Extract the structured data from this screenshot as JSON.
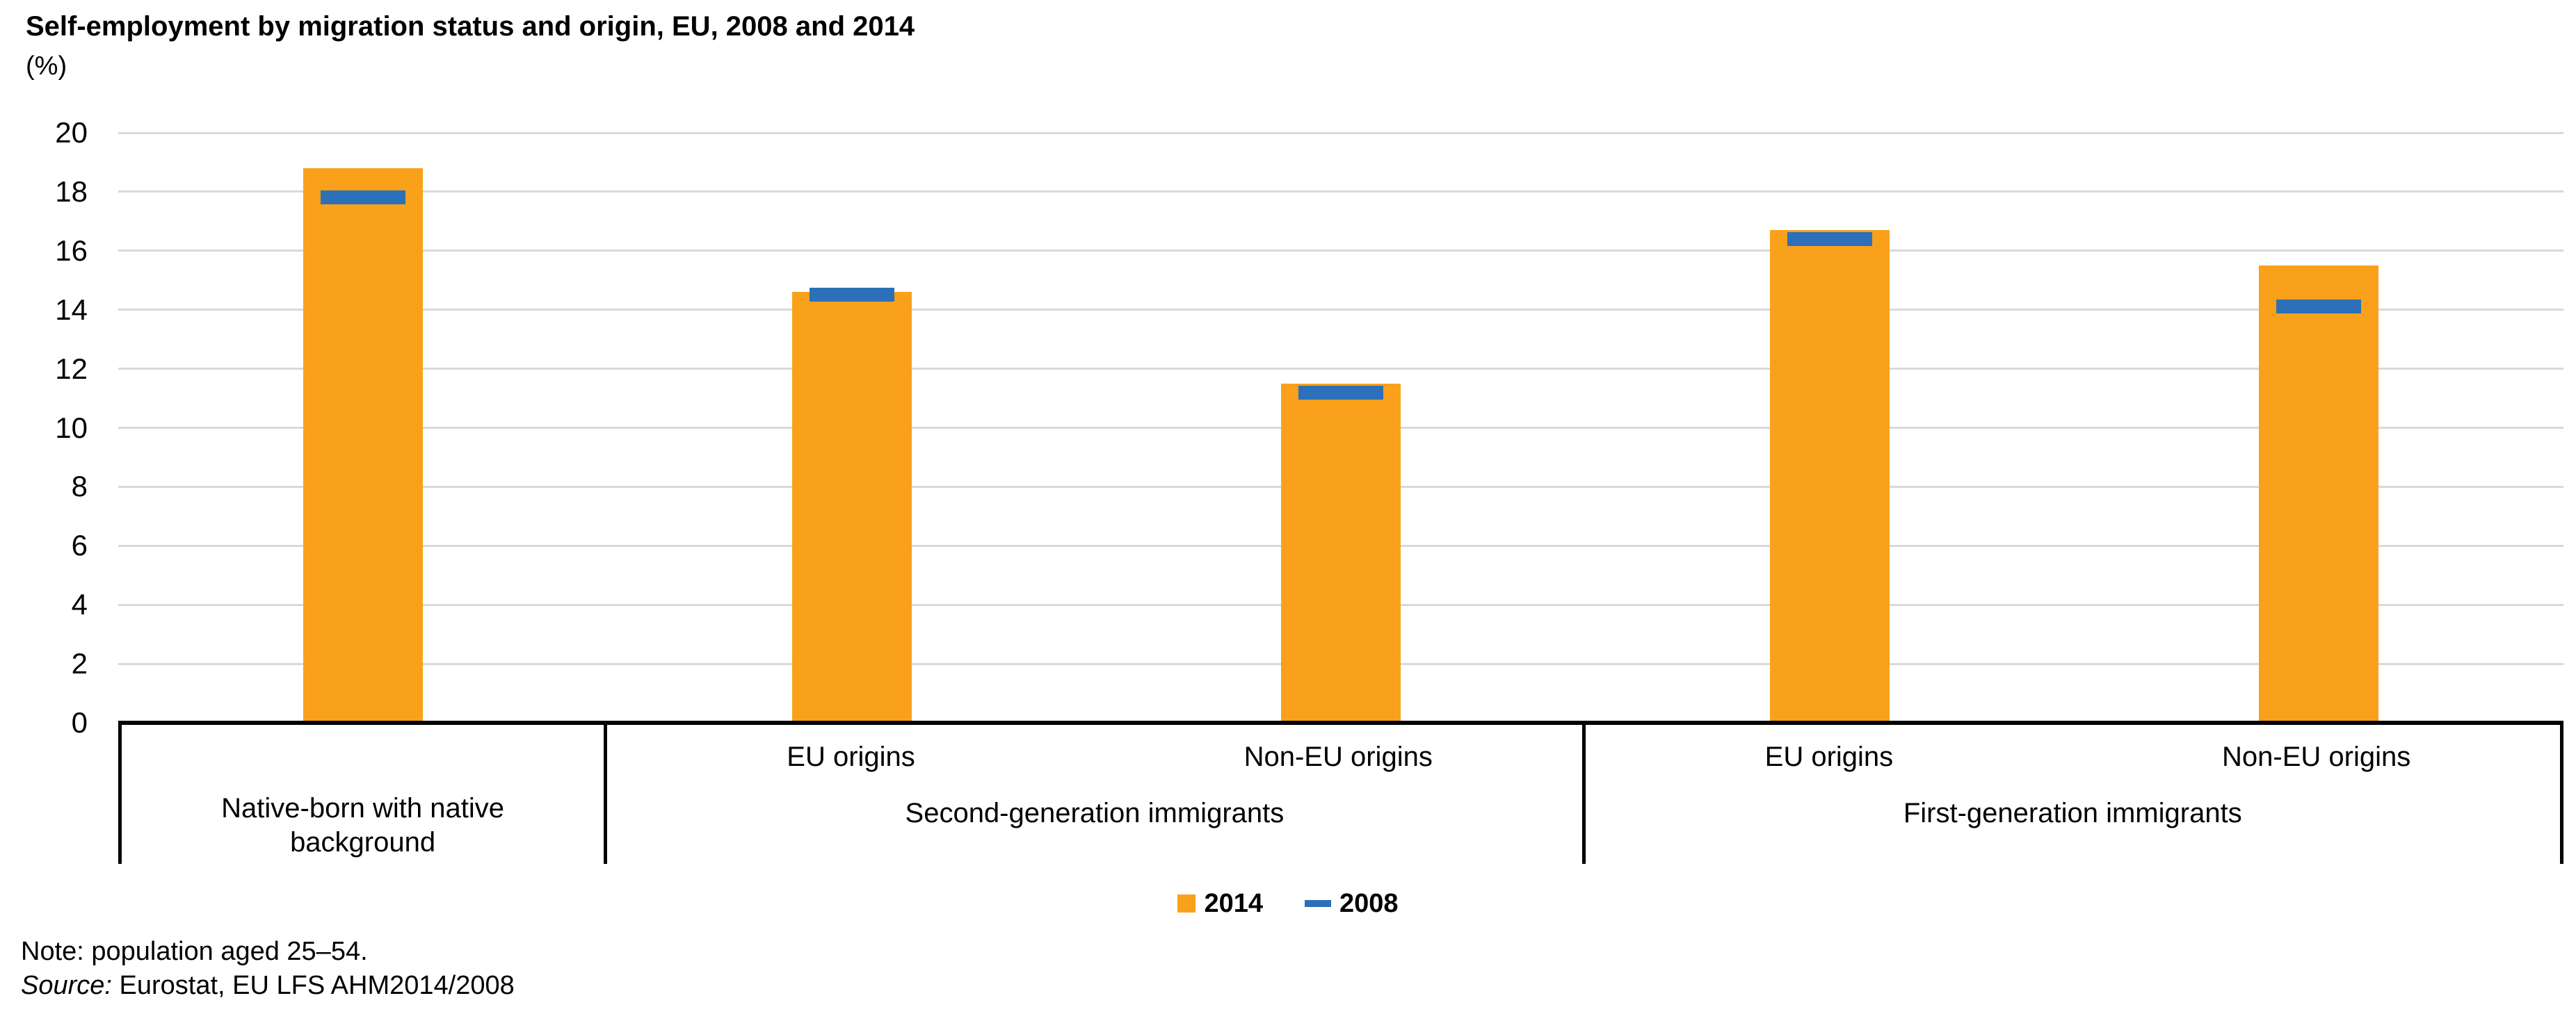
{
  "chart_data": {
    "type": "bar",
    "title": "Self-employment by migration status and origin, EU, 2008 and 2014",
    "unit": "(%)",
    "xlabel": "",
    "ylabel": "(%)",
    "ylim": [
      0,
      20
    ],
    "yticks": [
      0,
      2,
      4,
      6,
      8,
      10,
      12,
      14,
      16,
      18,
      20
    ],
    "grid": true,
    "legend_position": "bottom-center",
    "groups": [
      {
        "label": "Native-born with native background",
        "sublabels": []
      },
      {
        "label": "Second-generation immigrants",
        "sublabels": [
          "EU origins",
          "Non-EU origins"
        ]
      },
      {
        "label": "First-generation immigrants",
        "sublabels": [
          "EU origins",
          "Non-EU origins"
        ]
      }
    ],
    "categories": [
      "Native-born with native background",
      "Second-generation immigrants - EU origins",
      "Second-generation immigrants - Non-EU origins",
      "First-generation immigrants - EU origins",
      "First-generation immigrants - Non-EU origins"
    ],
    "series": [
      {
        "name": "2014",
        "style": "bar",
        "color": "#F9A11B",
        "values": [
          18.8,
          14.6,
          11.5,
          16.7,
          15.5
        ]
      },
      {
        "name": "2008",
        "style": "dash",
        "color": "#2B70B8",
        "values": [
          17.8,
          14.5,
          11.2,
          16.4,
          14.1
        ]
      }
    ]
  },
  "legend": {
    "items": [
      {
        "label": "2014",
        "swatch": "square",
        "color": "#F9A11B"
      },
      {
        "label": "2008",
        "swatch": "dash",
        "color": "#2B70B8"
      }
    ]
  },
  "notes": {
    "note": "Note: population aged 25–54.",
    "source_label": "Source:",
    "source_value": "Eurostat, EU LFS AHM2014/2008"
  },
  "colors": {
    "gridline": "#D9D9D9",
    "axis": "#000000",
    "bar_2014": "#F9A11B",
    "dash_2008": "#2B70B8"
  }
}
